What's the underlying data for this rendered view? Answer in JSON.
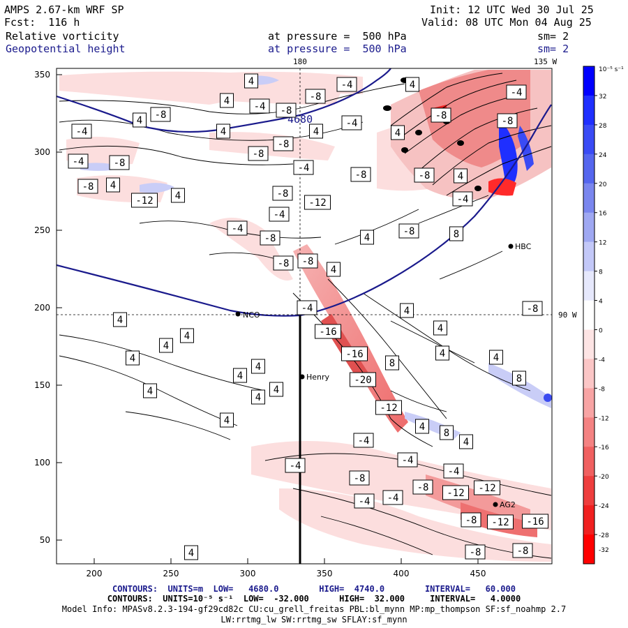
{
  "header": {
    "model": "AMPS 2.67-km WRF SP",
    "forecast": "Fcst:  116 h",
    "field1": "Relative vorticity",
    "field2": "Geopotential height",
    "init": "Init: 12 UTC Wed 30 Jul 25",
    "valid": "Valid: 08 UTC Mon 04 Aug 25",
    "pressure1": "at pressure =  500 hPa",
    "pressure2": "at pressure =  500 hPa",
    "sm1": "sm= 2",
    "sm2": "sm= 2"
  },
  "map": {
    "meridian_180": "180",
    "meridian_135w": "135 W",
    "meridian_90w": "90 W",
    "x_ticks": [
      "200",
      "250",
      "300",
      "350",
      "400",
      "450"
    ],
    "y_ticks": [
      "350",
      "300",
      "250",
      "200",
      "150",
      "100",
      "50"
    ],
    "height_contour_label": "4680",
    "stations": [
      "NCO",
      "Henry",
      "HBC",
      "AG2"
    ],
    "contour_labels": [
      "-4",
      "-8",
      "-12",
      "-16",
      "-20",
      "4",
      "8"
    ],
    "colorbar": {
      "unit_label": "10⁻⁵ s⁻¹",
      "ticks": [
        "32",
        "28",
        "24",
        "20",
        "16",
        "12",
        "8",
        "4",
        "0",
        "-4",
        "-8",
        "-12",
        "-16",
        "-20",
        "-24",
        "-28",
        "-32"
      ],
      "colors": [
        "#0000ff",
        "#1f2fff",
        "#3a4bf5",
        "#5566ee",
        "#7a86ee",
        "#9fa8f2",
        "#c3c8f8",
        "#e6e8fc",
        "#ffffff",
        "#fde4e4",
        "#fbc6c6",
        "#f8a4a4",
        "#f48282",
        "#f06060",
        "#ee3e3e",
        "#f02020",
        "#ff0000"
      ]
    }
  },
  "footer": {
    "line1": "CONTOURS:  UNITS=m  LOW=   4680.0        HIGH=  4740.0        INTERVAL=   60.000",
    "line2": "CONTOURS:  UNITS=10⁻⁵ s⁻¹  LOW=  -32.000      HIGH=  32.000     INTERVAL=   4.0000",
    "line3": "Model Info: MPASv8.2.3-194-gf29cd82c CU:cu_grell_freitas PBL:bl_mynn MP:mp_thompson SF:sf_noahmp 2.7",
    "line4": "LW:rrtmg_lw SW:rrtmg_sw SFLAY:sf_mynn"
  }
}
